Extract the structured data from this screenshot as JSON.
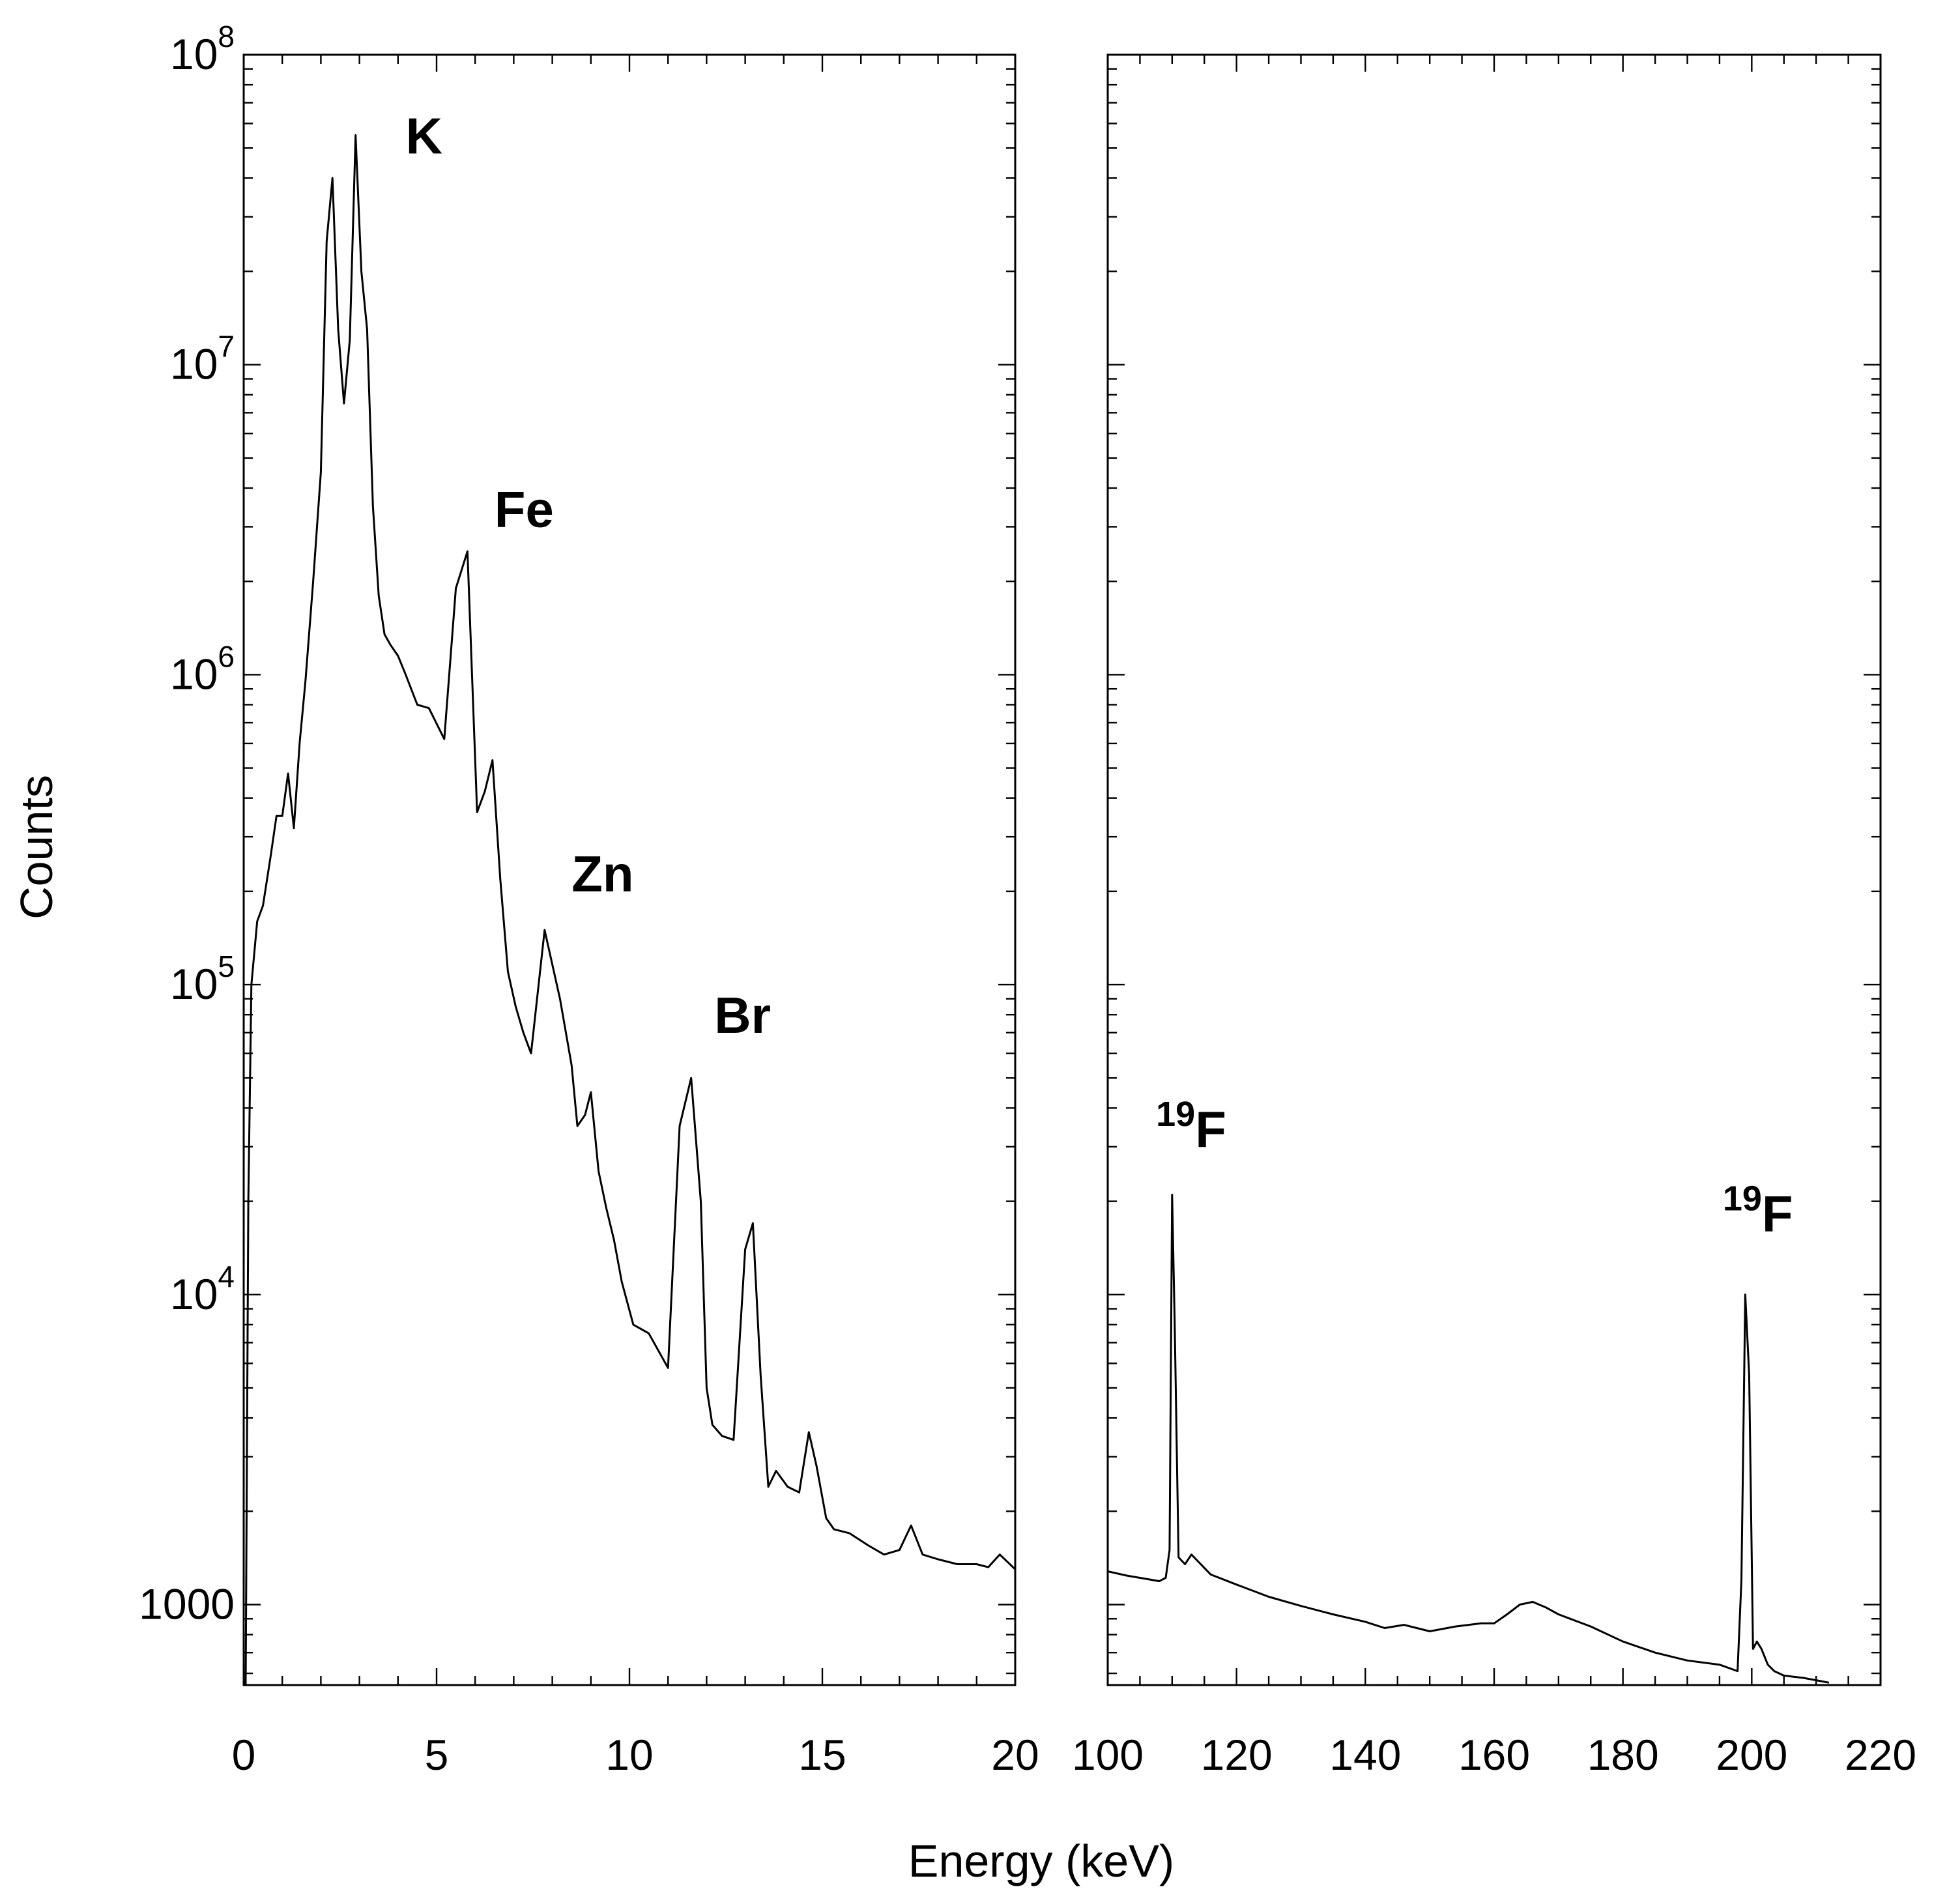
{
  "chart_data": {
    "type": "line",
    "yscale": "log",
    "ylabel": "Counts",
    "xlabel": "Energy (keV)",
    "ylim": [
      550,
      100000000
    ],
    "y_ticks": [
      {
        "value": 1000,
        "base": "1000",
        "exp": ""
      },
      {
        "value": 10000,
        "base": "10",
        "exp": "4"
      },
      {
        "value": 100000,
        "base": "10",
        "exp": "5"
      },
      {
        "value": 1000000,
        "base": "10",
        "exp": "6"
      },
      {
        "value": 10000000,
        "base": "10",
        "exp": "7"
      },
      {
        "value": 100000000,
        "base": "10",
        "exp": "8"
      }
    ],
    "panels": [
      {
        "name": "low-energy",
        "xlim": [
          0,
          20
        ],
        "x_ticks": [
          0,
          5,
          10,
          15,
          20
        ],
        "x_tick_labels": [
          "0",
          "5",
          "10",
          "15",
          "20"
        ],
        "series": [
          {
            "name": "spectrum-low",
            "x": [
              0.05,
              0.12,
              0.2,
              0.35,
              0.5,
              0.7,
              0.85,
              1.0,
              1.15,
              1.3,
              1.45,
              1.6,
              1.8,
              2.0,
              2.15,
              2.3,
              2.45,
              2.6,
              2.75,
              2.9,
              3.05,
              3.2,
              3.35,
              3.5,
              3.65,
              3.8,
              4.0,
              4.2,
              4.5,
              4.8,
              5.2,
              5.5,
              5.8,
              6.05,
              6.25,
              6.45,
              6.65,
              6.85,
              7.05,
              7.25,
              7.45,
              7.8,
              8.2,
              8.5,
              8.65,
              8.85,
              9.0,
              9.2,
              9.4,
              9.6,
              9.8,
              10.1,
              10.5,
              11.0,
              11.3,
              11.6,
              11.85,
              12.0,
              12.15,
              12.4,
              12.7,
              13.0,
              13.2,
              13.4,
              13.6,
              13.8,
              14.1,
              14.4,
              14.65,
              14.85,
              15.1,
              15.3,
              15.7,
              16.2,
              16.6,
              17.0,
              17.3,
              17.6,
              18.0,
              18.5,
              19.0,
              19.3,
              19.6,
              20.0
            ],
            "y": [
              550,
              20000,
              100000,
              160000,
              180000,
              260000,
              350000,
              350000,
              480000,
              320000,
              600000,
              950000,
              2000000,
              4500000,
              25000000,
              40000000,
              13000000,
              7500000,
              12000000,
              55000000,
              20000000,
              13000000,
              3500000,
              1800000,
              1350000,
              1250000,
              1150000,
              1000000,
              800000,
              780000,
              620000,
              1900000,
              2500000,
              360000,
              420000,
              530000,
              220000,
              110000,
              85000,
              70000,
              60000,
              150000,
              90000,
              55000,
              35000,
              38000,
              45000,
              25000,
              19000,
              15000,
              11000,
              8000,
              7500,
              5800,
              35000,
              50000,
              20000,
              5000,
              3800,
              3500,
              3400,
              14000,
              17000,
              5500,
              2400,
              2700,
              2400,
              2300,
              3600,
              2800,
              1900,
              1750,
              1700,
              1550,
              1450,
              1500,
              1800,
              1450,
              1400,
              1350,
              1350,
              1320,
              1450,
              1300
            ]
          }
        ],
        "annotations": [
          {
            "label": "K",
            "sup": "",
            "x": 4.2,
            "y": 48000000
          },
          {
            "label": "Fe",
            "sup": "",
            "x": 6.5,
            "y": 3000000
          },
          {
            "label": "Zn",
            "sup": "",
            "x": 8.5,
            "y": 200000
          },
          {
            "label": "Br",
            "sup": "",
            "x": 12.2,
            "y": 70000
          }
        ]
      },
      {
        "name": "high-energy",
        "xlim": [
          100,
          220
        ],
        "x_ticks": [
          100,
          120,
          140,
          160,
          180,
          200,
          220
        ],
        "x_tick_labels": [
          "100",
          "120",
          "140",
          "160",
          "180",
          "200",
          "220"
        ],
        "series": [
          {
            "name": "spectrum-high",
            "x": [
              100,
              103,
              106,
              108,
              109,
              109.6,
              110,
              110.4,
              111,
              112,
              113,
              114,
              116,
              120,
              125,
              130,
              135,
              140,
              143,
              146,
              150,
              154,
              158,
              160,
              162,
              164,
              166,
              168,
              170,
              175,
              180,
              185,
              190,
              195,
              197.8,
              198.4,
              199,
              199.6,
              200.2,
              200.8,
              201.5,
              202.5,
              203.5,
              205,
              208,
              210,
              212
            ],
            "y": [
              1280,
              1240,
              1210,
              1190,
              1220,
              1500,
              21000,
              8000,
              1420,
              1350,
              1450,
              1380,
              1250,
              1160,
              1060,
              990,
              930,
              880,
              840,
              860,
              820,
              850,
              870,
              870,
              930,
              1000,
              1020,
              980,
              930,
              850,
              760,
              700,
              660,
              640,
              610,
              1200,
              10000,
              5500,
              720,
              760,
              720,
              640,
              610,
              590,
              580,
              570,
              560
            ]
          }
        ],
        "annotations": [
          {
            "label": "F",
            "sup": "19",
            "x": 107.5,
            "y": 30000
          },
          {
            "label": "F",
            "sup": "19",
            "x": 195.5,
            "y": 16000
          }
        ]
      }
    ]
  }
}
